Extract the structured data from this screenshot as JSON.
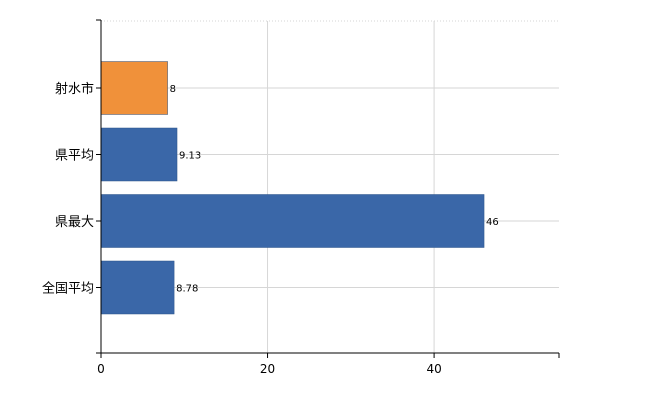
{
  "chart_data": {
    "type": "bar",
    "orientation": "horizontal",
    "categories": [
      "射水市",
      "県平均",
      "県最大",
      "全国平均"
    ],
    "values": [
      8,
      9.13,
      46,
      8.78
    ],
    "value_labels": [
      "8",
      "9.13",
      "46",
      "8.78"
    ],
    "colors": [
      "#f0913a",
      "#3a67a8",
      "#3a67a8",
      "#3a67a8"
    ],
    "xlim": [
      0,
      55
    ],
    "x_ticks": [
      0,
      20,
      40
    ],
    "x_tick_labels": [
      "0",
      "20",
      "40"
    ],
    "grid": true,
    "legend": "none"
  }
}
